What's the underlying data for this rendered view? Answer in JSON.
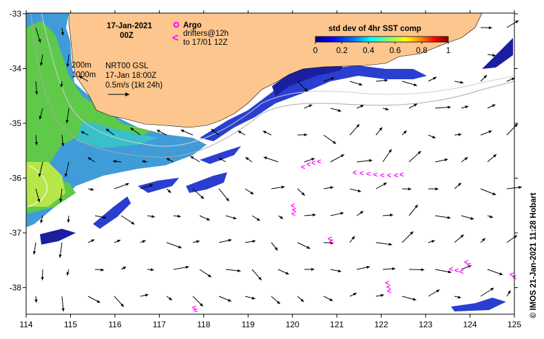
{
  "header": {
    "date": "17-Jan-2021",
    "time": "00Z"
  },
  "legend": {
    "argo_label": "Argo",
    "drifters_label": "drifters@12h",
    "drifters_range": "to 17/01 12Z",
    "argo_color": "#ff00ff",
    "drifter_color": "#ff00ff"
  },
  "contours": {
    "label_200m": "200m",
    "label_1000m": "1000m"
  },
  "currents": {
    "source": "NRT00 GSL",
    "valid_time": "17-Jan 18:00Z",
    "scale_label": "0.5m/s (1kt 24h)"
  },
  "colorbar": {
    "title": "std dev of 4hr SST comp",
    "ticks": [
      "0",
      "0.2",
      "0.4",
      "0.6",
      "0.8",
      "1"
    ],
    "colors": [
      "#00007f",
      "#0000ff",
      "#007fff",
      "#00ffff",
      "#7fff7f",
      "#ffff00",
      "#ff7f00",
      "#ff0000",
      "#7f0000"
    ]
  },
  "axes": {
    "x_ticks": [
      "114",
      "115",
      "116",
      "117",
      "118",
      "119",
      "120",
      "121",
      "122",
      "123",
      "124",
      "125"
    ],
    "y_ticks": [
      "-33",
      "-34",
      "-35",
      "-36",
      "-37",
      "-38"
    ]
  },
  "credit": "© IMOS 21-Jan-2021 11:28 Hobart",
  "colors": {
    "land": "#fdc68e",
    "ocean": "#ffffff",
    "frame": "#000000"
  }
}
